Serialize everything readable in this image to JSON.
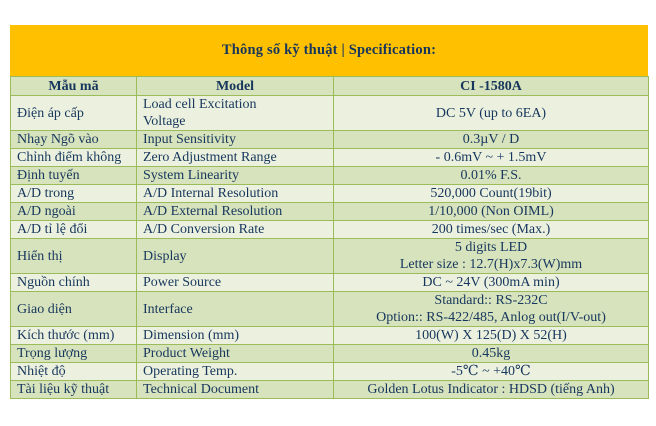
{
  "banner": {
    "title": "Thông số kỹ thuật | Specification:",
    "background_color": "#FFC000",
    "text_color": "#17365D"
  },
  "colors": {
    "row_light": "#EBF1DE",
    "row_dark": "#D6E3BC",
    "border_green": "#9CBB59",
    "text_navy": "#17365D"
  },
  "table": {
    "header": {
      "col1": "Mẫu mã",
      "col2": "Model",
      "col3": "CI -1580A"
    },
    "rows": [
      {
        "vi": "Điện áp cấp",
        "en": "Load cell Excitation\nVoltage",
        "value": "DC 5V (up to 6EA)"
      },
      {
        "vi": "Nhạy Ngõ vào",
        "en": "Input Sensitivity",
        "value": "0.3µV / D"
      },
      {
        "vi": "Chỉnh điểm không",
        "en": "Zero Adjustment Range",
        "value": "- 0.6mV ~ + 1.5mV"
      },
      {
        "vi": "Định tuyến",
        "en": "System Linearity",
        "value": "0.01% F.S."
      },
      {
        "vi": "A/D trong",
        "en": "A/D Internal Resolution",
        "value": "520,000 Count(19bit)"
      },
      {
        "vi": "A/D ngoài",
        "en": "A/D External Resolution",
        "value": "1/10,000 (Non OIML)"
      },
      {
        "vi": "A/D tỉ lệ đổi",
        "en": "A/D Conversion Rate",
        "value": "200 times/sec (Max.)"
      },
      {
        "vi": "Hiển thị",
        "en": "Display",
        "value": "5 digits LED\nLetter size : 12.7(H)x7.3(W)mm"
      },
      {
        "vi": "Nguồn chính",
        "en": "Power Source",
        "value": "DC ~ 24V (300mA min)"
      },
      {
        "vi": "Giao diện",
        "en": "Interface",
        "value": "Standard:: RS-232C\nOption:: RS-422/485, Anlog out(I/V-out)"
      },
      {
        "vi": "Kích thước (mm)",
        "en": "Dimension (mm)",
        "value": "100(W) X 125(D) X 52(H)"
      },
      {
        "vi": "Trọng lượng",
        "en": "Product Weight",
        "value": "0.45kg"
      },
      {
        "vi": "Nhiệt độ",
        "en": "Operating Temp.",
        "value": "-5℃ ~ +40℃"
      },
      {
        "vi": "Tài liệu kỹ thuật",
        "en": "Technical Document",
        "value": "Golden Lotus Indicator : HDSD (tiếng Anh)"
      }
    ]
  }
}
